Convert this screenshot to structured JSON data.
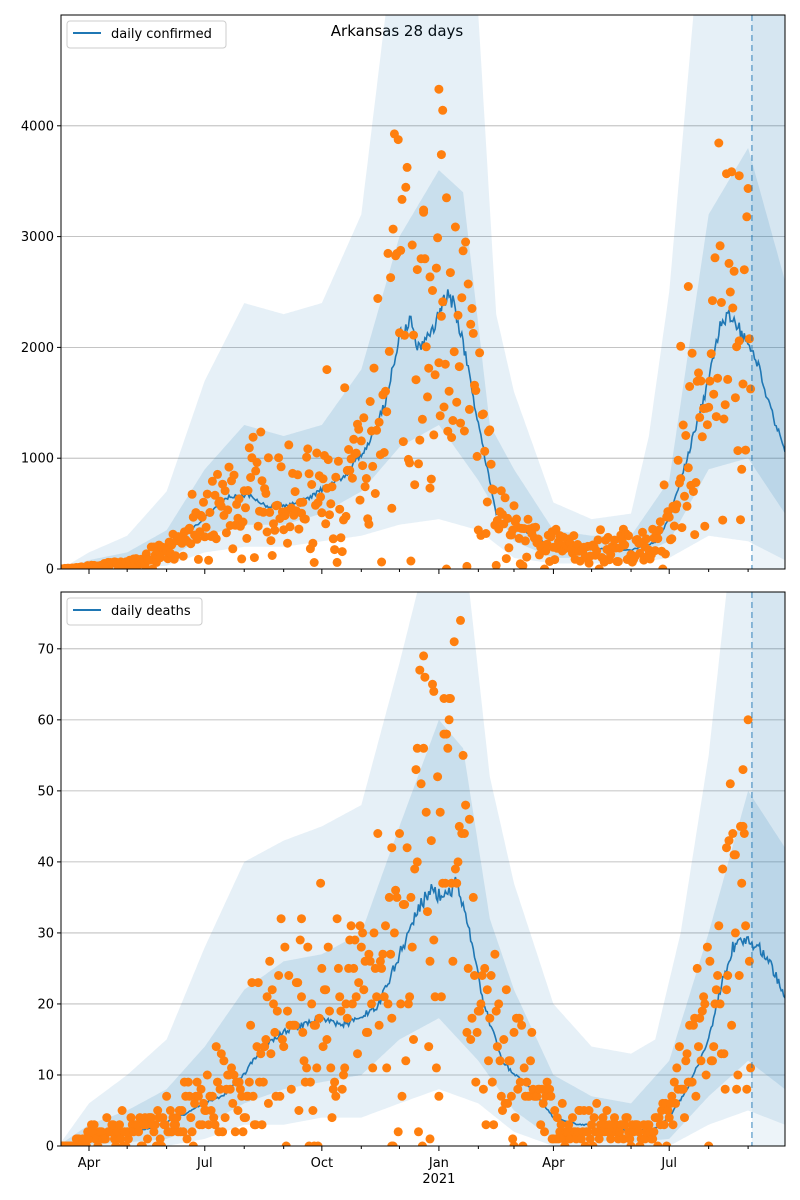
{
  "figure_title": "Arkansas 28 days",
  "colors": {
    "line": "#1f77b4",
    "points": "#ff7f0e",
    "band": "#1f77b4",
    "grid": "#b0b0b0",
    "vline": "#1f77b4"
  },
  "chart_data": [
    {
      "type": "line",
      "panel": "top",
      "title": "Arkansas 28 days",
      "legend": {
        "label": "daily confirmed",
        "placement": "top-left"
      },
      "ylim": [
        0,
        5000
      ],
      "yticks": [
        0,
        1000,
        2000,
        3000,
        4000
      ],
      "xlim": [
        "2020-03-10",
        "2021-09-30"
      ],
      "forecast_start": "2021-09-04",
      "grid": "horizontal",
      "line": [
        [
          "2020-03-10",
          0
        ],
        [
          "2020-04-01",
          20
        ],
        [
          "2020-04-20",
          40
        ],
        [
          "2020-05-10",
          70
        ],
        [
          "2020-06-01",
          150
        ],
        [
          "2020-06-20",
          350
        ],
        [
          "2020-07-10",
          550
        ],
        [
          "2020-07-20",
          650
        ],
        [
          "2020-08-05",
          660
        ],
        [
          "2020-08-20",
          560
        ],
        [
          "2020-09-05",
          580
        ],
        [
          "2020-09-20",
          630
        ],
        [
          "2020-10-05",
          750
        ],
        [
          "2020-10-20",
          850
        ],
        [
          "2020-11-05",
          1100
        ],
        [
          "2020-11-20",
          1500
        ],
        [
          "2020-12-01",
          2100
        ],
        [
          "2020-12-10",
          2250
        ],
        [
          "2020-12-15",
          2000
        ],
        [
          "2020-12-20",
          2000
        ],
        [
          "2021-01-01",
          2300
        ],
        [
          "2021-01-08",
          2480
        ],
        [
          "2021-01-12",
          2400
        ],
        [
          "2021-01-20",
          2050
        ],
        [
          "2021-02-01",
          1300
        ],
        [
          "2021-02-10",
          800
        ],
        [
          "2021-02-15",
          500
        ],
        [
          "2021-03-01",
          430
        ],
        [
          "2021-03-15",
          300
        ],
        [
          "2021-04-01",
          200
        ],
        [
          "2021-04-20",
          170
        ],
        [
          "2021-05-10",
          180
        ],
        [
          "2021-06-01",
          170
        ],
        [
          "2021-06-20",
          240
        ],
        [
          "2021-07-01",
          450
        ],
        [
          "2021-07-15",
          1000
        ],
        [
          "2021-08-01",
          1700
        ],
        [
          "2021-08-10",
          2200
        ],
        [
          "2021-08-20",
          2300
        ],
        [
          "2021-09-01",
          2000
        ],
        [
          "2021-09-10",
          1800
        ],
        [
          "2021-09-20",
          1400
        ],
        [
          "2021-09-30",
          1080
        ]
      ],
      "band_outer_upper": [
        [
          "2020-03-10",
          0
        ],
        [
          "2020-04-01",
          150
        ],
        [
          "2020-05-01",
          300
        ],
        [
          "2020-06-01",
          700
        ],
        [
          "2020-07-01",
          1700
        ],
        [
          "2020-08-01",
          2400
        ],
        [
          "2020-09-01",
          2300
        ],
        [
          "2020-10-01",
          2400
        ],
        [
          "2020-11-01",
          3200
        ],
        [
          "2020-11-20",
          5000
        ],
        [
          "2021-02-01",
          5000
        ],
        [
          "2021-02-15",
          2300
        ],
        [
          "2021-03-01",
          1600
        ],
        [
          "2021-04-01",
          600
        ],
        [
          "2021-05-01",
          450
        ],
        [
          "2021-06-01",
          500
        ],
        [
          "2021-06-15",
          1200
        ],
        [
          "2021-07-01",
          2500
        ],
        [
          "2021-07-20",
          5000
        ],
        [
          "2021-09-30",
          5000
        ]
      ],
      "band_outer_lower": [
        [
          "2020-03-10",
          0
        ],
        [
          "2020-05-01",
          0
        ],
        [
          "2020-06-01",
          30
        ],
        [
          "2020-07-01",
          150
        ],
        [
          "2020-08-01",
          200
        ],
        [
          "2020-09-01",
          200
        ],
        [
          "2020-10-01",
          250
        ],
        [
          "2020-11-01",
          300
        ],
        [
          "2020-12-01",
          400
        ],
        [
          "2021-01-01",
          450
        ],
        [
          "2021-02-01",
          350
        ],
        [
          "2021-03-01",
          100
        ],
        [
          "2021-04-01",
          50
        ],
        [
          "2021-05-01",
          50
        ],
        [
          "2021-06-01",
          50
        ],
        [
          "2021-07-01",
          100
        ],
        [
          "2021-08-01",
          300
        ],
        [
          "2021-09-01",
          250
        ],
        [
          "2021-09-30",
          80
        ]
      ],
      "band_inner_upper": [
        [
          "2020-03-10",
          0
        ],
        [
          "2020-04-01",
          80
        ],
        [
          "2020-05-01",
          150
        ],
        [
          "2020-06-01",
          350
        ],
        [
          "2020-07-01",
          900
        ],
        [
          "2020-08-01",
          1300
        ],
        [
          "2020-09-01",
          1200
        ],
        [
          "2020-10-01",
          1300
        ],
        [
          "2020-11-01",
          1800
        ],
        [
          "2020-12-01",
          3000
        ],
        [
          "2021-01-01",
          3600
        ],
        [
          "2021-01-20",
          3400
        ],
        [
          "2021-02-10",
          1300
        ],
        [
          "2021-03-01",
          900
        ],
        [
          "2021-04-01",
          350
        ],
        [
          "2021-05-01",
          300
        ],
        [
          "2021-06-01",
          300
        ],
        [
          "2021-07-01",
          800
        ],
        [
          "2021-08-01",
          3200
        ],
        [
          "2021-09-01",
          3800
        ],
        [
          "2021-09-30",
          2600
        ]
      ],
      "band_inner_lower": [
        [
          "2020-03-10",
          0
        ],
        [
          "2020-05-01",
          20
        ],
        [
          "2020-06-01",
          80
        ],
        [
          "2020-07-01",
          300
        ],
        [
          "2020-08-01",
          400
        ],
        [
          "2020-09-01",
          400
        ],
        [
          "2020-10-01",
          500
        ],
        [
          "2020-11-01",
          700
        ],
        [
          "2020-12-01",
          1100
        ],
        [
          "2021-01-01",
          1300
        ],
        [
          "2021-02-01",
          800
        ],
        [
          "2021-03-01",
          250
        ],
        [
          "2021-04-01",
          100
        ],
        [
          "2021-05-01",
          100
        ],
        [
          "2021-06-01",
          100
        ],
        [
          "2021-07-01",
          250
        ],
        [
          "2021-08-01",
          900
        ],
        [
          "2021-09-01",
          1000
        ],
        [
          "2021-09-30",
          500
        ]
      ],
      "points_seed": 7,
      "points_noise": 0.45,
      "points_every_days": 1,
      "points_extra": [
        [
          "2021-01-01",
          4330
        ],
        [
          "2021-01-04",
          4140
        ],
        [
          "2021-01-03",
          3740
        ],
        [
          "2020-12-20",
          3240
        ],
        [
          "2021-01-07",
          3350
        ],
        [
          "2021-08-25",
          3550
        ],
        [
          "2020-10-05",
          1800
        ],
        [
          "2020-12-25",
          730
        ],
        [
          "2021-07-10",
          2010
        ],
        [
          "2021-07-16",
          2550
        ]
      ]
    },
    {
      "type": "line",
      "panel": "bottom",
      "legend": {
        "label": "daily deaths",
        "placement": "top-left"
      },
      "ylim": [
        0,
        78
      ],
      "yticks": [
        0,
        10,
        20,
        30,
        40,
        50,
        60,
        70
      ],
      "xlim": [
        "2020-03-10",
        "2021-09-30"
      ],
      "forecast_start": "2021-09-04",
      "grid": "horizontal",
      "xtick_labels": [
        {
          "date": "2020-04-01",
          "label": "Apr"
        },
        {
          "date": "2020-07-01",
          "label": "Jul"
        },
        {
          "date": "2020-10-01",
          "label": "Oct"
        },
        {
          "date": "2021-01-01",
          "label": "Jan"
        },
        {
          "date": "2021-04-01",
          "label": "Apr"
        },
        {
          "date": "2021-07-01",
          "label": "Jul"
        }
      ],
      "year_label": {
        "date": "2021-01-01",
        "label": "2021"
      },
      "line": [
        [
          "2020-03-10",
          0
        ],
        [
          "2020-03-25",
          0.5
        ],
        [
          "2020-04-10",
          2
        ],
        [
          "2020-05-01",
          2
        ],
        [
          "2020-05-20",
          2.5
        ],
        [
          "2020-06-10",
          4
        ],
        [
          "2020-07-01",
          6
        ],
        [
          "2020-07-15",
          7
        ],
        [
          "2020-08-01",
          10
        ],
        [
          "2020-08-15",
          14
        ],
        [
          "2020-09-01",
          16
        ],
        [
          "2020-09-15",
          17
        ],
        [
          "2020-10-01",
          18
        ],
        [
          "2020-10-15",
          17
        ],
        [
          "2020-11-01",
          18
        ],
        [
          "2020-11-15",
          20
        ],
        [
          "2020-12-01",
          27
        ],
        [
          "2020-12-15",
          33
        ],
        [
          "2020-12-25",
          36
        ],
        [
          "2021-01-05",
          35
        ],
        [
          "2021-01-15",
          37
        ],
        [
          "2021-01-25",
          30
        ],
        [
          "2021-02-05",
          20
        ],
        [
          "2021-02-20",
          12
        ],
        [
          "2021-03-01",
          10
        ],
        [
          "2021-03-15",
          8
        ],
        [
          "2021-04-01",
          4
        ],
        [
          "2021-04-20",
          3
        ],
        [
          "2021-05-10",
          3
        ],
        [
          "2021-06-01",
          2
        ],
        [
          "2021-06-20",
          2.5
        ],
        [
          "2021-07-01",
          4
        ],
        [
          "2021-07-15",
          8
        ],
        [
          "2021-08-01",
          15
        ],
        [
          "2021-08-10",
          22
        ],
        [
          "2021-08-20",
          28
        ],
        [
          "2021-08-30",
          29
        ],
        [
          "2021-09-10",
          28
        ],
        [
          "2021-09-20",
          25
        ],
        [
          "2021-09-30",
          21
        ]
      ],
      "band_outer_upper": [
        [
          "2020-03-10",
          0.5
        ],
        [
          "2020-04-01",
          6
        ],
        [
          "2020-05-01",
          10
        ],
        [
          "2020-06-01",
          15
        ],
        [
          "2020-07-01",
          28
        ],
        [
          "2020-08-01",
          40
        ],
        [
          "2020-09-01",
          43
        ],
        [
          "2020-10-01",
          45
        ],
        [
          "2020-11-01",
          48
        ],
        [
          "2020-12-01",
          68
        ],
        [
          "2020-12-15",
          78
        ],
        [
          "2021-01-25",
          78
        ],
        [
          "2021-02-10",
          52
        ],
        [
          "2021-03-01",
          37
        ],
        [
          "2021-04-01",
          20
        ],
        [
          "2021-05-01",
          14
        ],
        [
          "2021-06-01",
          13
        ],
        [
          "2021-06-20",
          15
        ],
        [
          "2021-07-10",
          30
        ],
        [
          "2021-08-01",
          55
        ],
        [
          "2021-08-15",
          78
        ],
        [
          "2021-09-30",
          78
        ]
      ],
      "band_outer_lower": [
        [
          "2020-03-10",
          0
        ],
        [
          "2020-06-01",
          0
        ],
        [
          "2020-07-01",
          1
        ],
        [
          "2020-08-01",
          3
        ],
        [
          "2020-09-01",
          3
        ],
        [
          "2020-10-01",
          4
        ],
        [
          "2020-11-01",
          4
        ],
        [
          "2020-12-01",
          6
        ],
        [
          "2021-01-01",
          8
        ],
        [
          "2021-02-01",
          6
        ],
        [
          "2021-03-01",
          2
        ],
        [
          "2021-04-01",
          0
        ],
        [
          "2021-07-01",
          0
        ],
        [
          "2021-08-01",
          3
        ],
        [
          "2021-09-01",
          5
        ],
        [
          "2021-09-30",
          3
        ]
      ],
      "band_inner_upper": [
        [
          "2020-03-10",
          0.3
        ],
        [
          "2020-04-01",
          3
        ],
        [
          "2020-05-01",
          5
        ],
        [
          "2020-06-01",
          8
        ],
        [
          "2020-07-01",
          14
        ],
        [
          "2020-08-01",
          22
        ],
        [
          "2020-09-01",
          26
        ],
        [
          "2020-10-01",
          27
        ],
        [
          "2020-11-01",
          30
        ],
        [
          "2020-12-01",
          45
        ],
        [
          "2021-01-01",
          60
        ],
        [
          "2021-01-20",
          56
        ],
        [
          "2021-02-10",
          32
        ],
        [
          "2021-03-01",
          22
        ],
        [
          "2021-04-01",
          10
        ],
        [
          "2021-05-01",
          7
        ],
        [
          "2021-06-01",
          6
        ],
        [
          "2021-07-01",
          12
        ],
        [
          "2021-08-01",
          30
        ],
        [
          "2021-09-01",
          50
        ],
        [
          "2021-09-30",
          42
        ]
      ],
      "band_inner_lower": [
        [
          "2020-03-10",
          0
        ],
        [
          "2020-05-01",
          0.5
        ],
        [
          "2020-06-01",
          1
        ],
        [
          "2020-07-01",
          3
        ],
        [
          "2020-08-01",
          6
        ],
        [
          "2020-09-01",
          8
        ],
        [
          "2020-10-01",
          9
        ],
        [
          "2020-11-01",
          10
        ],
        [
          "2020-12-01",
          15
        ],
        [
          "2021-01-01",
          18
        ],
        [
          "2021-02-01",
          12
        ],
        [
          "2021-03-01",
          5
        ],
        [
          "2021-04-01",
          1
        ],
        [
          "2021-06-01",
          0.5
        ],
        [
          "2021-07-01",
          1
        ],
        [
          "2021-08-01",
          7
        ],
        [
          "2021-09-01",
          12
        ],
        [
          "2021-09-30",
          8
        ]
      ],
      "points_seed": 13,
      "points_noise": 0.5,
      "points_every_days": 1,
      "points_extra": [
        [
          "2020-12-28",
          64
        ],
        [
          "2021-01-05",
          63
        ],
        [
          "2021-01-09",
          63
        ],
        [
          "2020-12-15",
          56
        ],
        [
          "2020-12-20",
          56
        ],
        [
          "2021-08-28",
          45
        ],
        [
          "2021-08-15",
          42
        ],
        [
          "2020-11-25",
          42
        ],
        [
          "2020-09-15",
          32
        ],
        [
          "2021-08-22",
          41
        ],
        [
          "2020-12-25",
          1
        ],
        [
          "2020-09-25",
          0
        ],
        [
          "2020-11-25",
          0
        ],
        [
          "2021-03-01",
          0
        ]
      ]
    }
  ]
}
